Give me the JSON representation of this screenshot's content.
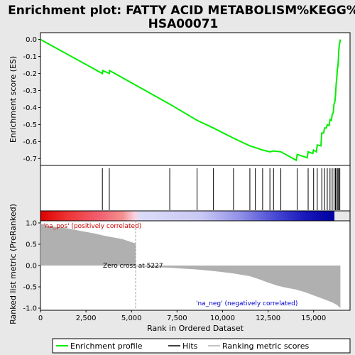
{
  "title_line1": "Enrichment plot: FATTY ACID METABOLISM%KEGG%",
  "title_line2": "HSA00071",
  "colors": {
    "es_line": "#00ee00",
    "hits": "#000000",
    "metric_fill": "#b0b0b0",
    "pos_text": "#cc0000",
    "neg_text": "#0000cc",
    "zero_line": "#a0a0a0"
  },
  "chart_data": [
    {
      "type": "line",
      "name": "enrichment-profile",
      "ylabel": "Enrichment score (ES)",
      "ylim": [
        -0.74,
        0.04
      ],
      "yticks": [
        0.0,
        -0.1,
        -0.2,
        -0.3,
        -0.4,
        -0.5,
        -0.6,
        -0.7
      ],
      "ytick_labels": [
        "0.0",
        "-0.1",
        "-0.2",
        "-0.3",
        "-0.4",
        "-0.5",
        "-0.6",
        "-0.7"
      ],
      "x": [
        0,
        3400,
        3420,
        3780,
        3800,
        7100,
        8600,
        9500,
        10600,
        11500,
        11800,
        12200,
        12600,
        12800,
        13200,
        14050,
        14100,
        14650,
        14700,
        14950,
        15000,
        15150,
        15200,
        15400,
        15450,
        15550,
        15600,
        15700,
        15750,
        15850,
        15900,
        15980,
        16020,
        16080,
        16120,
        16170,
        16200,
        16240,
        16270,
        16300,
        16330,
        16360,
        16380,
        16410,
        16440,
        16470
      ],
      "y": [
        0.0,
        -0.2,
        -0.183,
        -0.2,
        -0.183,
        -0.38,
        -0.475,
        -0.52,
        -0.58,
        -0.625,
        -0.635,
        -0.65,
        -0.66,
        -0.655,
        -0.66,
        -0.71,
        -0.675,
        -0.695,
        -0.66,
        -0.67,
        -0.65,
        -0.66,
        -0.62,
        -0.625,
        -0.55,
        -0.55,
        -0.52,
        -0.52,
        -0.5,
        -0.505,
        -0.47,
        -0.475,
        -0.44,
        -0.43,
        -0.38,
        -0.365,
        -0.33,
        -0.26,
        -0.23,
        -0.18,
        -0.16,
        -0.12,
        -0.07,
        -0.03,
        -0.02,
        0.0
      ]
    },
    {
      "type": "bar",
      "name": "hits",
      "x": [
        3400,
        3780,
        7100,
        8600,
        9500,
        10600,
        11500,
        11800,
        12200,
        12600,
        12800,
        13200,
        14100,
        14700,
        15000,
        15200,
        15450,
        15600,
        15750,
        15900,
        16020,
        16120,
        16200,
        16270,
        16330,
        16380,
        16440
      ]
    },
    {
      "type": "area",
      "name": "ranking-metric",
      "ylabel": "Ranked list metric (PreRanked)",
      "xlabel": "Rank in Ordered Dataset",
      "xlim": [
        0,
        17000
      ],
      "ylim": [
        -1.05,
        1.05
      ],
      "xticks": [
        0,
        2500,
        5000,
        7500,
        10000,
        12500,
        15000
      ],
      "xtick_labels": [
        "0",
        "2,500",
        "5,000",
        "7,500",
        "10,000",
        "12,500",
        "15,000"
      ],
      "yticks": [
        1.0,
        0.5,
        0.0,
        -0.5,
        -1.0
      ],
      "ytick_labels": [
        "1.0",
        "0.5",
        "0.0",
        "-0.5",
        "-1.0"
      ],
      "x": [
        0,
        100,
        400,
        1000,
        1500,
        2000,
        2500,
        3000,
        3500,
        4000,
        4500,
        5000,
        5227,
        5300,
        7000,
        8500,
        9500,
        10500,
        11500,
        12000,
        12500,
        13000,
        13500,
        14000,
        14500,
        15000,
        15500,
        16000,
        16300,
        16470
      ],
      "y": [
        1.0,
        0.97,
        0.93,
        0.9,
        0.87,
        0.83,
        0.79,
        0.75,
        0.7,
        0.66,
        0.62,
        0.55,
        0.52,
        -0.02,
        -0.05,
        -0.09,
        -0.13,
        -0.18,
        -0.25,
        -0.32,
        -0.4,
        -0.47,
        -0.52,
        -0.56,
        -0.62,
        -0.7,
        -0.78,
        -0.86,
        -0.93,
        -1.0
      ],
      "zero_cross": 5227
    }
  ],
  "annotations": {
    "pos_label": "'na_pos' (positively correlated)",
    "neg_label": "'na_neg' (negatively correlated)",
    "zero_cross": "Zero cross at 5227"
  },
  "legend": {
    "items": [
      "Enrichment profile",
      "Hits",
      "Ranking metric scores"
    ]
  }
}
